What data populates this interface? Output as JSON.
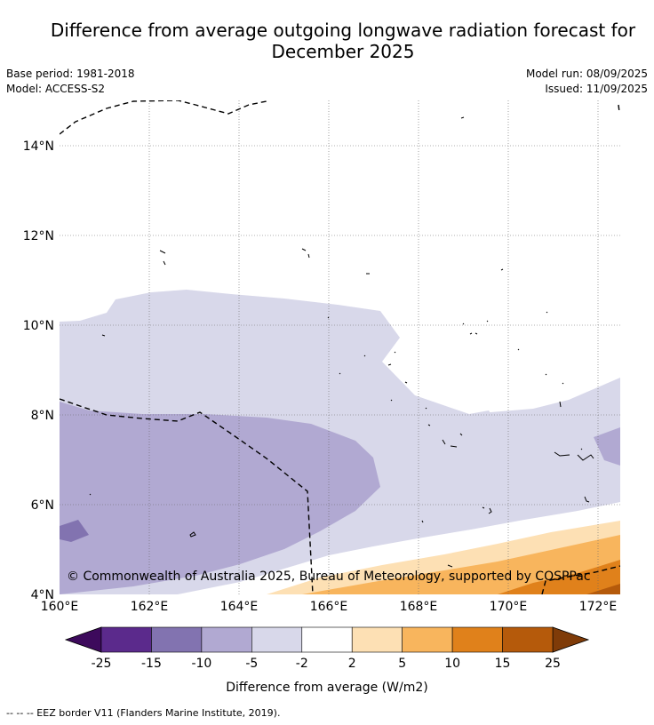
{
  "title_line1": "Difference from average outgoing longwave radiation forecast for",
  "title_line2": "December 2025",
  "base_period": "Base period: 1981-2018",
  "model": "Model: ACCESS-S2",
  "model_run": "Model run: 08/09/2025",
  "issued": "Issued: 11/09/2025",
  "copyright": "© Commonwealth of Australia 2025, Bureau of Meteorology, supported by COSPPac",
  "lon_ticks": [
    "160°E",
    "162°E",
    "164°E",
    "166°E",
    "168°E",
    "170°E",
    "172°E"
  ],
  "lat_ticks": [
    "4°N",
    "6°N",
    "8°N",
    "10°N",
    "12°N",
    "14°N"
  ],
  "colorbar": {
    "label": "Difference from average (W/m2)",
    "ticks": [
      "-25",
      "-15",
      "-10",
      "-5",
      "-2",
      "2",
      "5",
      "10",
      "15",
      "25"
    ],
    "colors": [
      "#5b2a8c",
      "#8273b0",
      "#b1a9d2",
      "#d8d8ea",
      "#ffffff",
      "#fde0b4",
      "#f8b55d",
      "#e0811b",
      "#b55a0b"
    ],
    "under_color": "#3d0a5c",
    "over_color": "#7f3b08"
  },
  "legend_footnote": "-- -- -- EEZ border V11 (Flanders Marine Institute, 2019).",
  "map": {
    "lon_range": [
      160,
      172.5
    ],
    "lat_range": [
      4,
      15.1
    ],
    "gridlines": true
  }
}
